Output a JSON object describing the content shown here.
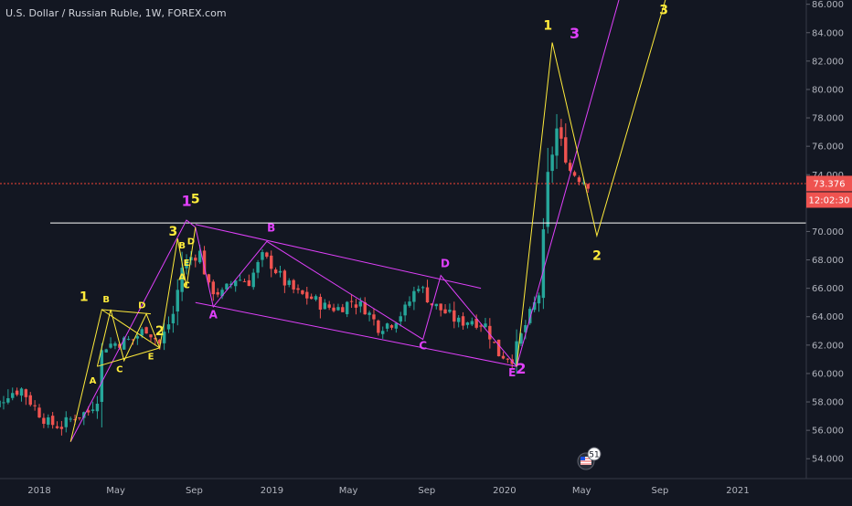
{
  "window": {
    "title": "U.S. Dollar / Russian Ruble, 1W, FOREX.com"
  },
  "badge": {
    "count": "51"
  },
  "colors": {
    "background": "#131722",
    "up": "#26a69a",
    "down": "#ef5350",
    "magenta": "#e040fb",
    "yellow": "#ffeb3b",
    "axis_text": "#b2b5be",
    "level_line": "#ffffff",
    "price_line": "#f44336"
  },
  "chart_data": {
    "type": "candlestick",
    "title": "U.S. Dollar / Russian Ruble, 1W, FOREX.com",
    "ylim": [
      52.6,
      86.3
    ],
    "y_ticks": [
      "54.000",
      "56.000",
      "58.000",
      "60.000",
      "62.000",
      "64.000",
      "66.000",
      "68.000",
      "70.000",
      "72.000",
      "74.000",
      "76.000",
      "78.000",
      "80.000",
      "82.000",
      "84.000",
      "86.000"
    ],
    "x_ticks": [
      {
        "label": "2018",
        "date": "2018-01"
      },
      {
        "label": "May",
        "date": "2018-05"
      },
      {
        "label": "Sep",
        "date": "2018-09"
      },
      {
        "label": "2019",
        "date": "2019-01"
      },
      {
        "label": "May",
        "date": "2019-05"
      },
      {
        "label": "Sep",
        "date": "2019-09"
      },
      {
        "label": "2020",
        "date": "2020-01"
      },
      {
        "label": "May",
        "date": "2020-05"
      },
      {
        "label": "Sep",
        "date": "2020-09"
      },
      {
        "label": "2021",
        "date": "2021-01"
      }
    ],
    "last_price": {
      "value": 73.376,
      "label": "73.376",
      "countdown": "12:02:30"
    },
    "horizontal_level": 70.6,
    "close_path": [
      [
        "2017-10-02",
        57.9
      ],
      [
        "2017-10-23",
        57.6
      ],
      [
        "2017-11-13",
        58.6
      ],
      [
        "2017-12-04",
        58.9
      ],
      [
        "2017-12-25",
        57.6
      ],
      [
        "2018-01-15",
        56.5
      ],
      [
        "2018-02-05",
        56.3
      ],
      [
        "2018-02-26",
        57.0
      ],
      [
        "2018-03-19",
        57.3
      ],
      [
        "2018-04-02",
        58.3
      ],
      [
        "2018-04-09",
        61.5
      ],
      [
        "2018-04-16",
        62.0
      ],
      [
        "2018-05-07",
        62.2
      ],
      [
        "2018-05-28",
        62.4
      ],
      [
        "2018-06-18",
        63.2
      ],
      [
        "2018-07-09",
        62.1
      ],
      [
        "2018-07-30",
        64.2
      ],
      [
        "2018-08-13",
        67.5
      ],
      [
        "2018-08-27",
        68.2
      ],
      [
        "2018-09-10",
        68.5
      ],
      [
        "2018-09-24",
        66.0
      ],
      [
        "2018-10-15",
        65.6
      ],
      [
        "2018-11-05",
        66.7
      ],
      [
        "2018-11-26",
        66.5
      ],
      [
        "2018-12-17",
        68.2
      ],
      [
        "2018-12-31",
        67.7
      ],
      [
        "2019-01-21",
        66.4
      ],
      [
        "2019-02-11",
        65.6
      ],
      [
        "2019-03-04",
        65.3
      ],
      [
        "2019-03-25",
        64.7
      ],
      [
        "2019-04-15",
        64.6
      ],
      [
        "2019-05-06",
        65.1
      ],
      [
        "2019-05-27",
        64.6
      ],
      [
        "2019-06-17",
        63.3
      ],
      [
        "2019-07-08",
        63.6
      ],
      [
        "2019-07-29",
        64.5
      ],
      [
        "2019-08-19",
        66.3
      ],
      [
        "2019-09-09",
        64.9
      ],
      [
        "2019-09-30",
        64.3
      ],
      [
        "2019-10-21",
        63.6
      ],
      [
        "2019-11-11",
        63.8
      ],
      [
        "2019-12-02",
        63.4
      ],
      [
        "2019-12-23",
        61.4
      ],
      [
        "2020-01-13",
        61.1
      ],
      [
        "2020-02-03",
        63.4
      ],
      [
        "2020-02-24",
        65.6
      ],
      [
        "2020-03-09",
        73.9
      ],
      [
        "2020-03-23",
        77.2
      ],
      [
        "2020-04-13",
        74.3
      ],
      [
        "2020-04-27",
        73.8
      ],
      [
        "2020-05-11",
        73.4
      ]
    ],
    "series": [
      {
        "name": "",
        "color": "#e040fb",
        "points": [
          [
            "2018-02-19",
            55.2
          ],
          [
            "2018-08-20",
            70.8
          ],
          [
            "2018-09-03",
            70.3
          ],
          [
            "2018-10-01",
            64.7
          ],
          [
            "2018-12-24",
            69.3
          ],
          [
            "2019-08-26",
            62.4
          ],
          [
            "2019-09-23",
            66.9
          ],
          [
            "2020-01-20",
            60.5
          ],
          [
            "2020-07-06",
            87.5
          ]
        ]
      },
      {
        "name": "",
        "color": "#e040fb",
        "points": [
          [
            "2018-09-03",
            70.5
          ],
          [
            "2019-11-25",
            66.0
          ]
        ]
      },
      {
        "name": "",
        "color": "#e040fb",
        "points": [
          [
            "2018-09-03",
            65.0
          ],
          [
            "2020-01-20",
            60.5
          ]
        ]
      },
      {
        "name": "",
        "color": "#ffeb3b",
        "points": [
          [
            "2018-02-19",
            55.2
          ],
          [
            "2018-04-09",
            64.5
          ],
          [
            "2018-07-09",
            61.8
          ],
          [
            "2018-08-06",
            69.5
          ],
          [
            "2018-08-20",
            66.1
          ],
          [
            "2018-09-03",
            70.3
          ]
        ]
      },
      {
        "name": "",
        "color": "#ffeb3b",
        "points": [
          [
            "2018-04-02",
            60.5
          ],
          [
            "2018-04-23",
            64.5
          ],
          [
            "2018-05-14",
            60.9
          ],
          [
            "2018-06-18",
            64.2
          ],
          [
            "2018-07-09",
            61.8
          ]
        ]
      },
      {
        "name": "",
        "color": "#ffeb3b",
        "points": [
          [
            "2018-04-09",
            64.5
          ],
          [
            "2018-06-25",
            64.2
          ]
        ]
      },
      {
        "name": "",
        "color": "#ffeb3b",
        "points": [
          [
            "2018-04-02",
            60.5
          ],
          [
            "2018-07-09",
            61.8
          ]
        ]
      },
      {
        "name": "",
        "color": "#ffeb3b",
        "points": [
          [
            "2020-01-20",
            60.5
          ],
          [
            "2020-03-16",
            83.3
          ],
          [
            "2020-05-25",
            69.7
          ],
          [
            "2020-09-14",
            87.0
          ]
        ]
      }
    ],
    "annotations": [
      {
        "text": "1",
        "color": "#ffeb3b",
        "date": "2018-03-12",
        "y": 65.1,
        "size": 14
      },
      {
        "text": "A",
        "color": "#ffeb3b",
        "date": "2018-03-26",
        "y": 59.3,
        "size": 10
      },
      {
        "text": "B",
        "color": "#ffeb3b",
        "date": "2018-04-16",
        "y": 65.0,
        "size": 10
      },
      {
        "text": "C",
        "color": "#ffeb3b",
        "date": "2018-05-07",
        "y": 60.1,
        "size": 10
      },
      {
        "text": "D",
        "color": "#ffeb3b",
        "date": "2018-06-11",
        "y": 64.6,
        "size": 10
      },
      {
        "text": "E",
        "color": "#ffeb3b",
        "date": "2018-06-25",
        "y": 61.0,
        "size": 10
      },
      {
        "text": "2",
        "color": "#ffeb3b",
        "date": "2018-07-09",
        "y": 62.7,
        "size": 14
      },
      {
        "text": "3",
        "color": "#ffeb3b",
        "date": "2018-07-30",
        "y": 69.7,
        "size": 14
      },
      {
        "text": "A",
        "color": "#ffeb3b",
        "date": "2018-08-13",
        "y": 66.6,
        "size": 10
      },
      {
        "text": "B",
        "color": "#ffeb3b",
        "date": "2018-08-13",
        "y": 68.8,
        "size": 10
      },
      {
        "text": "C",
        "color": "#ffeb3b",
        "date": "2018-08-20",
        "y": 66.0,
        "size": 10
      },
      {
        "text": "D",
        "color": "#ffeb3b",
        "date": "2018-08-27",
        "y": 69.1,
        "size": 10
      },
      {
        "text": "E",
        "color": "#ffeb3b",
        "date": "2018-08-20",
        "y": 67.6,
        "size": 10
      },
      {
        "text": "5",
        "color": "#ffeb3b",
        "date": "2018-09-03",
        "y": 72.0,
        "size": 14
      },
      {
        "text": "1",
        "color": "#e040fb",
        "date": "2018-08-20",
        "y": 71.8,
        "size": 16
      },
      {
        "text": "A",
        "color": "#e040fb",
        "date": "2018-10-01",
        "y": 63.9,
        "size": 12
      },
      {
        "text": "B",
        "color": "#e040fb",
        "date": "2018-12-31",
        "y": 70.0,
        "size": 12
      },
      {
        "text": "C",
        "color": "#e040fb",
        "date": "2019-08-26",
        "y": 61.7,
        "size": 12
      },
      {
        "text": "D",
        "color": "#e040fb",
        "date": "2019-09-30",
        "y": 67.5,
        "size": 12
      },
      {
        "text": "E",
        "color": "#e040fb",
        "date": "2020-01-13",
        "y": 59.8,
        "size": 12
      },
      {
        "text": "2",
        "color": "#e040fb",
        "date": "2020-01-27",
        "y": 60.0,
        "size": 16
      },
      {
        "text": "1",
        "color": "#ffeb3b",
        "date": "2020-03-09",
        "y": 84.2,
        "size": 14
      },
      {
        "text": "3",
        "color": "#e040fb",
        "date": "2020-04-20",
        "y": 83.6,
        "size": 16
      },
      {
        "text": "2",
        "color": "#ffeb3b",
        "date": "2020-05-25",
        "y": 68.0,
        "size": 14
      },
      {
        "text": "3",
        "color": "#ffeb3b",
        "date": "2020-09-07",
        "y": 85.3,
        "size": 14
      }
    ]
  }
}
